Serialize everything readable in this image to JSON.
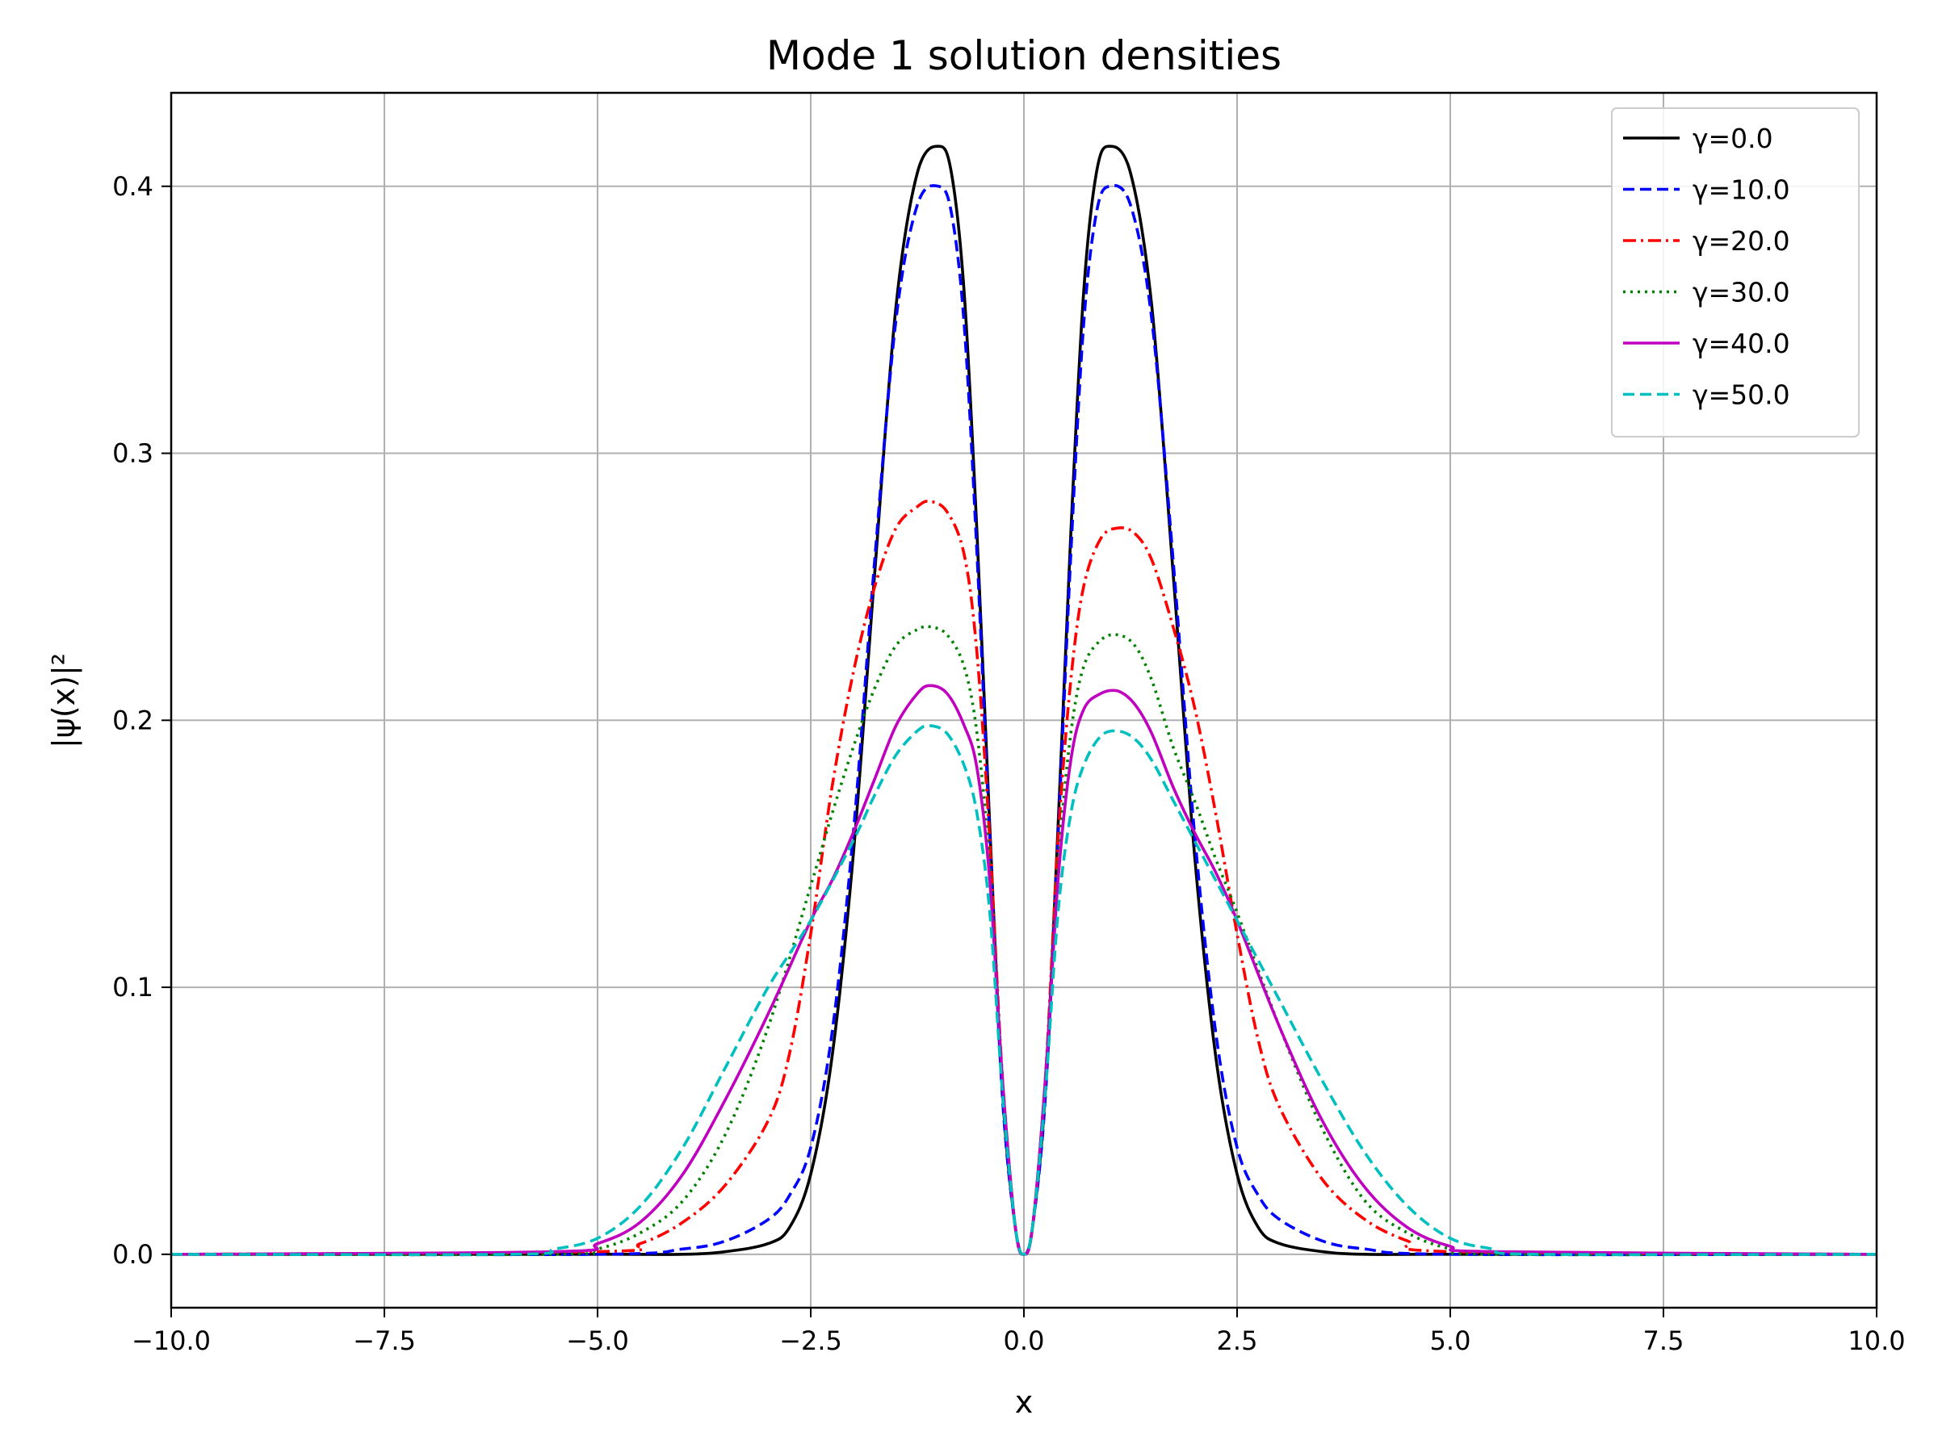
{
  "chart_data": {
    "type": "line",
    "title": "Mode 1 solution densities",
    "xlabel": "x",
    "ylabel": "|ψ(x)|²",
    "xlim": [
      -10,
      10
    ],
    "ylim": [
      -0.02,
      0.435
    ],
    "xticks": [
      -10,
      -7.5,
      -5,
      -2.5,
      0,
      2.5,
      5,
      7.5,
      10
    ],
    "xtick_labels": [
      "−10.0",
      "−7.5",
      "−5.0",
      "−2.5",
      "0.0",
      "2.5",
      "5.0",
      "7.5",
      "10.0"
    ],
    "yticks": [
      0,
      0.1,
      0.2,
      0.3,
      0.4
    ],
    "ytick_labels": [
      "0.0",
      "0.1",
      "0.2",
      "0.3",
      "0.4"
    ],
    "grid": true,
    "legend_position": "top-right",
    "series": [
      {
        "name": "γ=0.0",
        "color": "#000000",
        "style": "solid",
        "x": [
          -10,
          -5,
          -4,
          -3.5,
          -3,
          -2.75,
          -2.5,
          -2.25,
          -2,
          -1.75,
          -1.5,
          -1.25,
          -1,
          -0.85,
          -0.7,
          -0.55,
          -0.4,
          -0.25,
          -0.1,
          0,
          0.1,
          0.25,
          0.4,
          0.55,
          0.7,
          0.85,
          1,
          1.25,
          1.5,
          1.75,
          2,
          2.25,
          2.5,
          2.75,
          3,
          3.5,
          4,
          5,
          10
        ],
        "y": [
          0,
          0,
          0,
          0.001,
          0.004,
          0.01,
          0.03,
          0.074,
          0.15,
          0.255,
          0.355,
          0.405,
          0.415,
          0.405,
          0.36,
          0.27,
          0.16,
          0.06,
          0.01,
          0,
          0.01,
          0.06,
          0.16,
          0.27,
          0.36,
          0.405,
          0.415,
          0.405,
          0.355,
          0.255,
          0.15,
          0.074,
          0.03,
          0.01,
          0.004,
          0.001,
          0,
          0,
          0
        ]
      },
      {
        "name": "γ=10.0",
        "color": "#0000ff",
        "style": "dashed",
        "x": [
          -10,
          -5,
          -4,
          -3.5,
          -3,
          -2.75,
          -2.5,
          -2.25,
          -2,
          -1.75,
          -1.5,
          -1.25,
          -1,
          -0.85,
          -0.7,
          -0.55,
          -0.4,
          -0.25,
          -0.1,
          0,
          0.1,
          0.25,
          0.4,
          0.55,
          0.7,
          0.85,
          1,
          1.25,
          1.5,
          1.75,
          2,
          2.25,
          2.5,
          2.75,
          3,
          3.5,
          4,
          5,
          10
        ],
        "y": [
          0,
          0,
          0.002,
          0.005,
          0.013,
          0.022,
          0.04,
          0.083,
          0.158,
          0.26,
          0.35,
          0.393,
          0.4,
          0.39,
          0.348,
          0.262,
          0.156,
          0.058,
          0.01,
          0,
          0.01,
          0.058,
          0.156,
          0.262,
          0.348,
          0.39,
          0.4,
          0.393,
          0.35,
          0.26,
          0.158,
          0.083,
          0.04,
          0.022,
          0.013,
          0.005,
          0.002,
          0,
          0
        ]
      },
      {
        "name": "γ=20.0",
        "color": "#ff0000",
        "style": "dashdot",
        "x": [
          -10,
          -5,
          -4.5,
          -4,
          -3.5,
          -3,
          -2.75,
          -2.5,
          -2.25,
          -2,
          -1.75,
          -1.5,
          -1.25,
          -1.1,
          -0.9,
          -0.7,
          -0.55,
          -0.4,
          -0.25,
          -0.1,
          0,
          0.1,
          0.25,
          0.4,
          0.55,
          0.7,
          0.9,
          1.1,
          1.3,
          1.5,
          1.75,
          2,
          2.25,
          2.5,
          2.75,
          3,
          3.5,
          4,
          4.5,
          5,
          10
        ],
        "y": [
          0,
          0.001,
          0.004,
          0.012,
          0.026,
          0.05,
          0.075,
          0.12,
          0.175,
          0.218,
          0.25,
          0.272,
          0.28,
          0.282,
          0.278,
          0.262,
          0.225,
          0.155,
          0.065,
          0.01,
          0,
          0.01,
          0.065,
          0.155,
          0.215,
          0.25,
          0.268,
          0.272,
          0.27,
          0.26,
          0.235,
          0.205,
          0.165,
          0.12,
          0.08,
          0.055,
          0.028,
          0.013,
          0.005,
          0.001,
          0
        ]
      },
      {
        "name": "γ=30.0",
        "color": "#008000",
        "style": "dotted",
        "x": [
          -10,
          -5.5,
          -5,
          -4.5,
          -4,
          -3.5,
          -3,
          -2.5,
          -2.25,
          -2,
          -1.75,
          -1.5,
          -1.25,
          -1.1,
          -0.9,
          -0.7,
          -0.55,
          -0.4,
          -0.25,
          -0.1,
          0,
          0.1,
          0.25,
          0.4,
          0.55,
          0.7,
          0.9,
          1.1,
          1.3,
          1.5,
          1.75,
          2,
          2.25,
          2.5,
          3,
          3.5,
          4,
          4.5,
          5,
          5.5,
          10
        ],
        "y": [
          0,
          0,
          0.002,
          0.008,
          0.02,
          0.045,
          0.085,
          0.138,
          0.165,
          0.19,
          0.212,
          0.228,
          0.234,
          0.235,
          0.232,
          0.22,
          0.195,
          0.145,
          0.065,
          0.01,
          0,
          0.01,
          0.065,
          0.145,
          0.195,
          0.22,
          0.23,
          0.232,
          0.228,
          0.215,
          0.19,
          0.17,
          0.148,
          0.128,
          0.085,
          0.047,
          0.02,
          0.008,
          0.002,
          0,
          0
        ]
      },
      {
        "name": "γ=40.0",
        "color": "#bf00bf",
        "style": "solid",
        "x": [
          -10,
          -5.5,
          -5,
          -4.5,
          -4,
          -3.5,
          -3,
          -2.5,
          -2.25,
          -2,
          -1.75,
          -1.5,
          -1.25,
          -1.1,
          -0.9,
          -0.7,
          -0.55,
          -0.4,
          -0.25,
          -0.1,
          0,
          0.1,
          0.25,
          0.4,
          0.55,
          0.7,
          0.9,
          1.1,
          1.3,
          1.5,
          1.75,
          2,
          2.25,
          2.5,
          3,
          3.5,
          4,
          4.5,
          5,
          5.5,
          10
        ],
        "y": [
          0,
          0.001,
          0.004,
          0.012,
          0.03,
          0.058,
          0.09,
          0.125,
          0.14,
          0.158,
          0.178,
          0.198,
          0.21,
          0.213,
          0.21,
          0.198,
          0.182,
          0.14,
          0.065,
          0.01,
          0,
          0.01,
          0.065,
          0.14,
          0.185,
          0.204,
          0.21,
          0.211,
          0.206,
          0.195,
          0.175,
          0.158,
          0.143,
          0.125,
          0.085,
          0.05,
          0.025,
          0.01,
          0.003,
          0.001,
          0
        ]
      },
      {
        "name": "γ=50.0",
        "color": "#00bfbf",
        "style": "dashed",
        "x": [
          -10,
          -6,
          -5.5,
          -5,
          -4.5,
          -4,
          -3.5,
          -3,
          -2.5,
          -2,
          -1.75,
          -1.5,
          -1.25,
          -1.1,
          -0.9,
          -0.7,
          -0.55,
          -0.4,
          -0.25,
          -0.1,
          0,
          0.1,
          0.25,
          0.4,
          0.55,
          0.7,
          0.9,
          1.1,
          1.3,
          1.5,
          1.75,
          2,
          2.5,
          3,
          3.5,
          4,
          4.5,
          5,
          5.5,
          6,
          10
        ],
        "y": [
          0,
          0,
          0.002,
          0.006,
          0.018,
          0.04,
          0.07,
          0.1,
          0.125,
          0.155,
          0.172,
          0.187,
          0.196,
          0.198,
          0.195,
          0.183,
          0.165,
          0.128,
          0.06,
          0.01,
          0,
          0.01,
          0.06,
          0.128,
          0.165,
          0.183,
          0.194,
          0.196,
          0.193,
          0.185,
          0.17,
          0.155,
          0.125,
          0.095,
          0.065,
          0.038,
          0.018,
          0.006,
          0.002,
          0,
          0
        ]
      }
    ]
  }
}
